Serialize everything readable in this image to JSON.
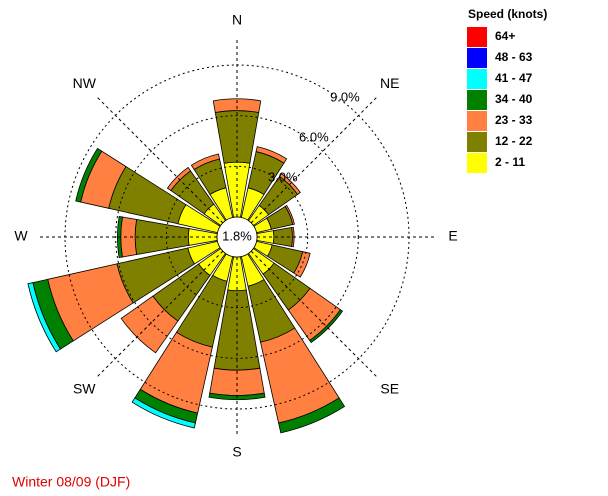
{
  "chart_data": {
    "type": "windrose",
    "legend_title": "Speed (knots)",
    "footer": "Winter 08/09 (DJF)",
    "categories": [
      "N",
      null,
      "NE",
      null,
      "E",
      null,
      "SE",
      null,
      "S",
      null,
      "SW",
      null,
      "W",
      null,
      "NW",
      null
    ],
    "calm": 1.8,
    "calm_label": "1.8%",
    "rlim": [
      0,
      9
    ],
    "rticks": [
      {
        "value": 3,
        "label": "3.0%"
      },
      {
        "value": 6,
        "label": "6.0%"
      },
      {
        "value": 9,
        "label": "9.0%"
      }
    ],
    "series": [
      {
        "name": "2 - 11",
        "color": "#ffff00",
        "values": [
          3.25,
          1.8,
          1.1,
          0.9,
          1.0,
          0.95,
          1.5,
          1.8,
          2.0,
          1.5,
          1.6,
          1.8,
          1.7,
          2.4,
          1.2,
          1.8
        ]
      },
      {
        "name": "12 - 22",
        "color": "#808000",
        "values": [
          3.05,
          2.2,
          2.1,
          1.3,
          1.1,
          1.85,
          2.6,
          3.4,
          4.7,
          4.0,
          3.3,
          4.3,
          3.15,
          4.2,
          2.4,
          1.75
        ]
      },
      {
        "name": "23 - 33",
        "color": "#ff8040",
        "values": [
          0.7,
          0.3,
          0.2,
          0.1,
          0.1,
          0.45,
          2.2,
          4.9,
          1.5,
          4.0,
          2.3,
          4.2,
          0.85,
          1.7,
          0.25,
          0.3
        ]
      },
      {
        "name": "34 - 40",
        "color": "#008000",
        "values": [
          0,
          0,
          0,
          0,
          0,
          0,
          0.15,
          0.6,
          0.25,
          0.6,
          0,
          0.9,
          0.2,
          0.3,
          0,
          0
        ]
      },
      {
        "name": "41 - 47",
        "color": "#00ffff",
        "values": [
          0,
          0,
          0,
          0,
          0,
          0,
          0,
          0,
          0,
          0.3,
          0,
          0.3,
          0,
          0,
          0,
          0
        ]
      },
      {
        "name": "48 - 63",
        "color": "#0000ff",
        "values": [
          0,
          0,
          0,
          0,
          0,
          0,
          0,
          0,
          0,
          0,
          0,
          0,
          0,
          0,
          0,
          0
        ]
      },
      {
        "name": "64+",
        "color": "#ff0000",
        "values": [
          0,
          0,
          0,
          0,
          0,
          0,
          0,
          0,
          0,
          0,
          0,
          0,
          0,
          0,
          0,
          0
        ]
      }
    ]
  }
}
